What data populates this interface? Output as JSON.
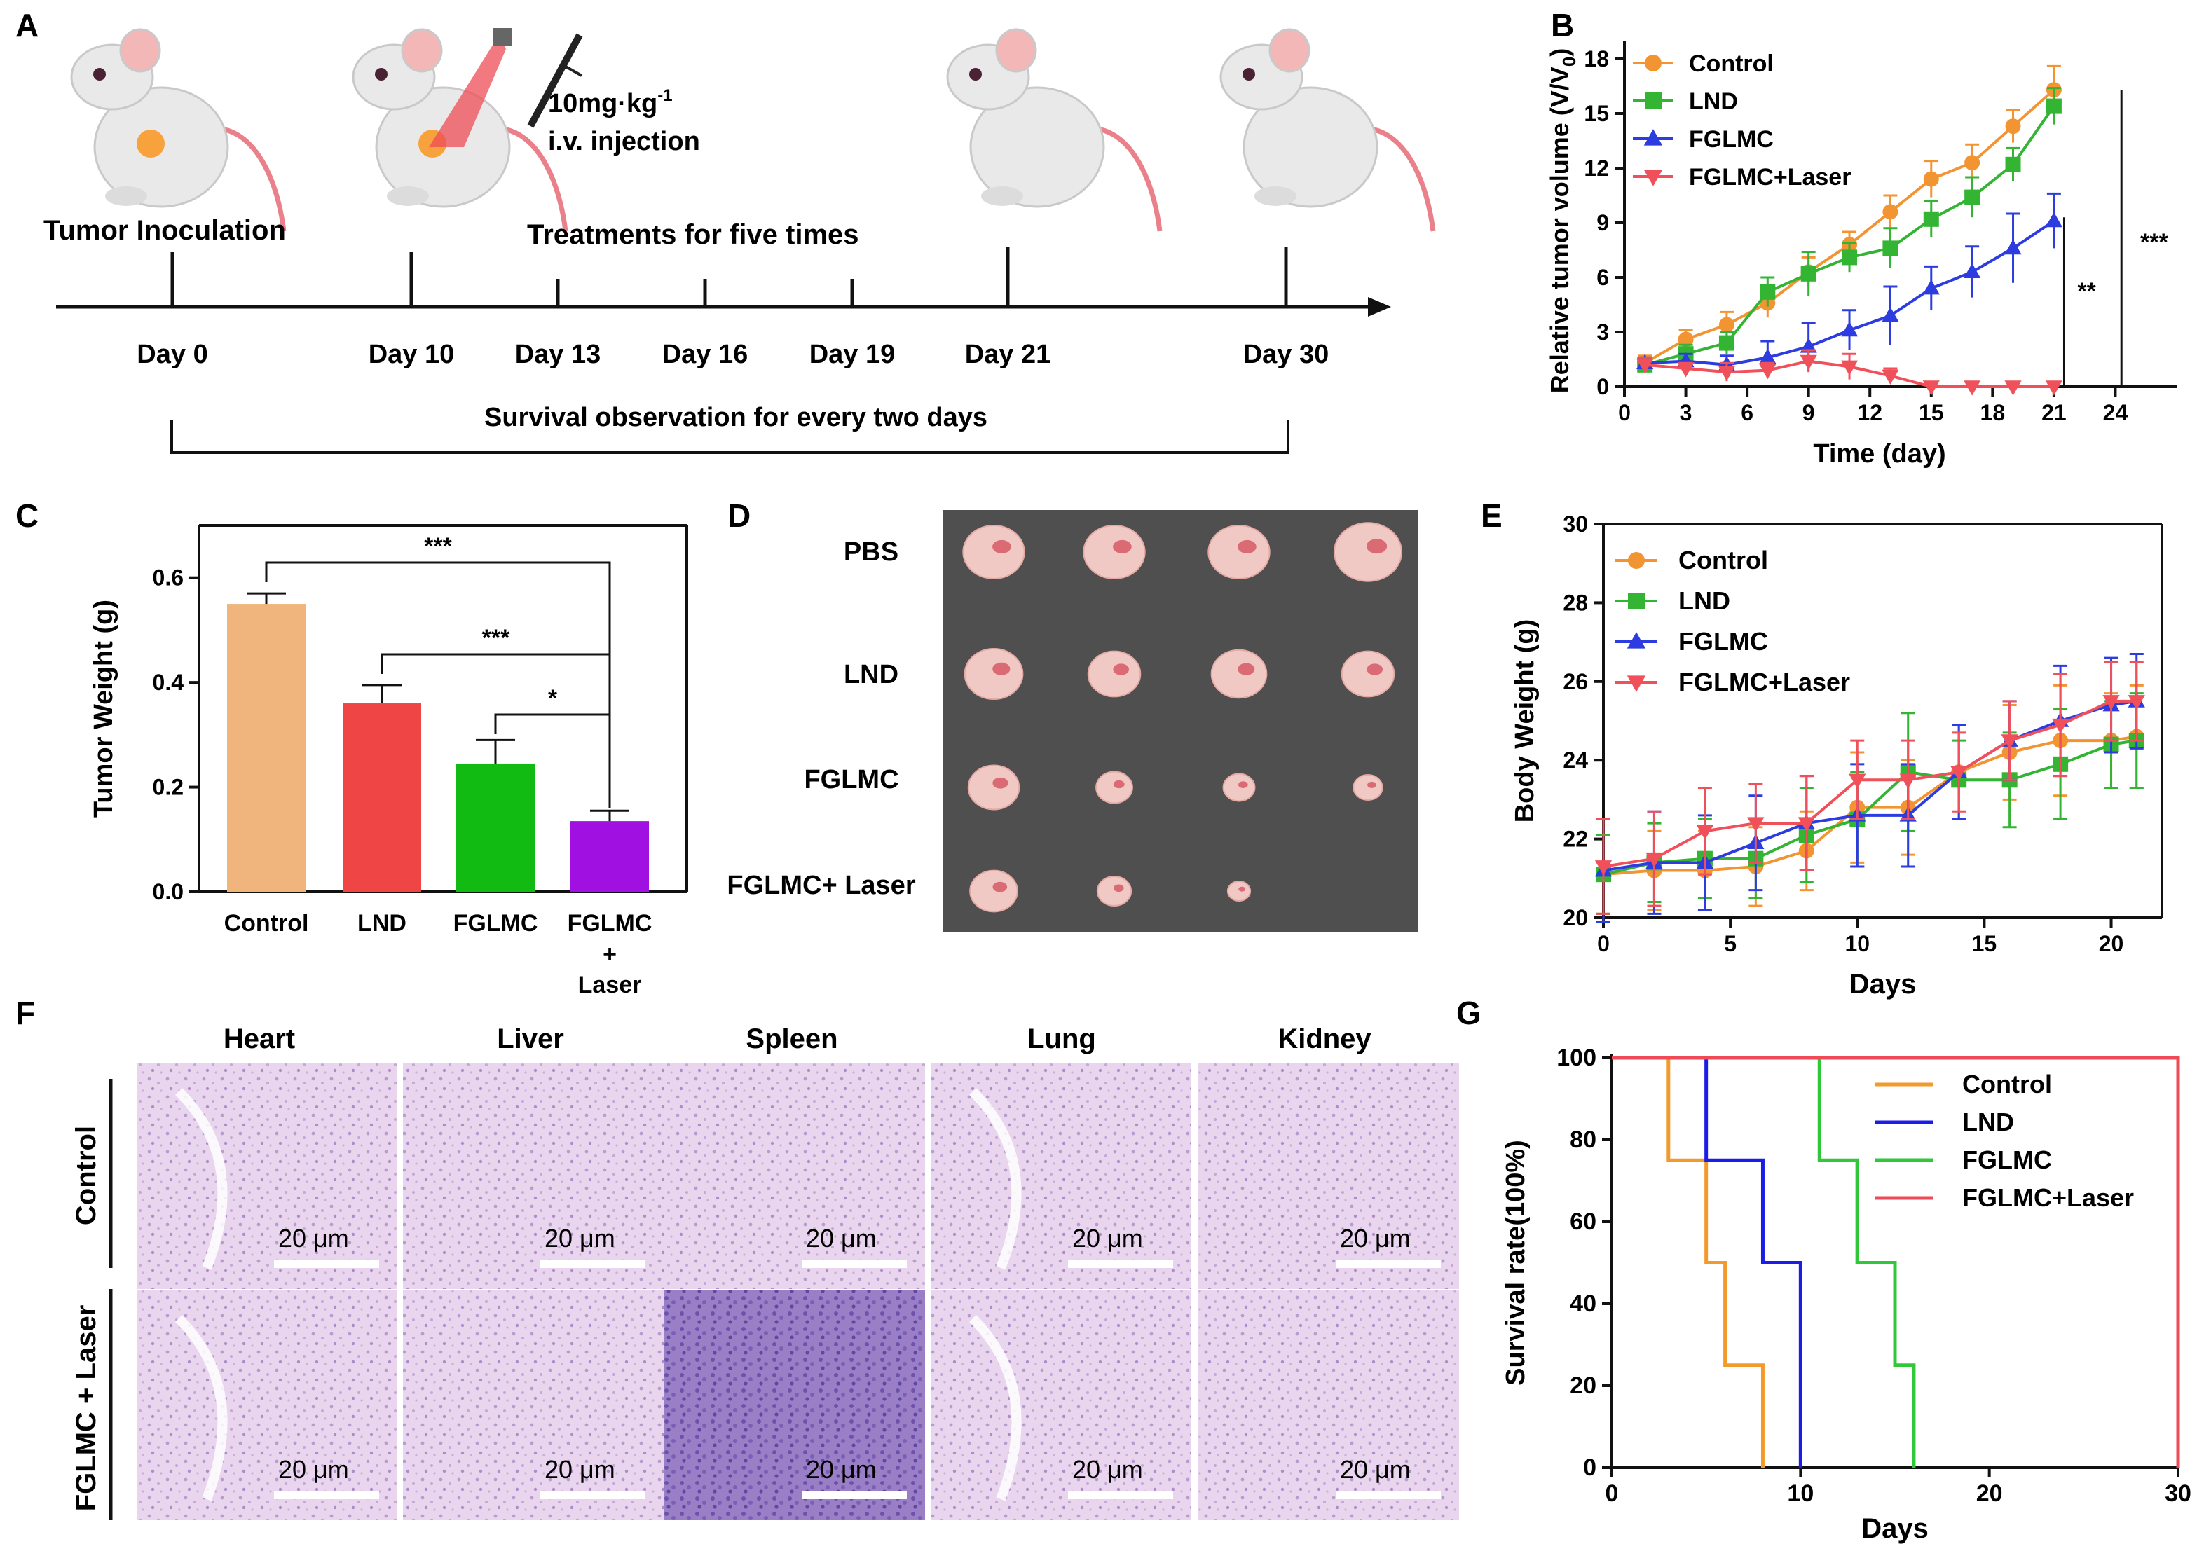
{
  "panel_letters": [
    "A",
    "B",
    "C",
    "D",
    "E",
    "F",
    "G"
  ],
  "colors": {
    "control": "#f39433",
    "lnd": "#33b433",
    "fglmc": "#2c3ce0",
    "fglmc_laser": "#f0505a",
    "bar_control": "#efb57c",
    "bar_lnd": "#f04545",
    "bar_fglmc": "#12bb12",
    "bar_laser": "#a010e0",
    "surv_control": "#f39a2c",
    "surv_lnd": "#1c1ce8",
    "surv_fglmc": "#30c83a",
    "surv_laser": "#ef4a55",
    "axis": "#111111",
    "mouse_body": "#e9e9e9",
    "mouse_ear": "#f3b7b7",
    "tail": "#e9808a",
    "tumor": "#f7a23c",
    "laser": "#ee4c55",
    "he_bg": "#e9d6ee",
    "he_spot": "#b69ccf",
    "tissue_board": "#4f4f4f"
  },
  "panel_a": {
    "dose_line1": "10mg·kg",
    "dose_sup": "-1",
    "dose_line2": "i.v. injection",
    "label_inoculation": "Tumor Inoculation",
    "label_treatments": "Treatments for five times",
    "timeline_days": [
      "Day 0",
      "Day 10",
      "Day 13",
      "Day 16",
      "Day 19",
      "Day 21",
      "Day 30"
    ],
    "survival_label": "Survival observation for every two days",
    "icons": [
      "mouse-icon",
      "mouse-laser-icon",
      "syringe-icon",
      "mouse-icon",
      "mouse-icon"
    ]
  },
  "panel_d": {
    "rows": [
      "PBS",
      "LND",
      "FGLMC",
      "FGLMC+ Laser"
    ],
    "tumor_counts": [
      4,
      4,
      4,
      3
    ]
  },
  "panel_f": {
    "columns": [
      "Heart",
      "Liver",
      "Spleen",
      "Lung",
      "Kidney"
    ],
    "rows": [
      "Control",
      "FGLMC + Laser"
    ],
    "scale_bar": "20 μm"
  },
  "chart_data": [
    {
      "id": "B",
      "type": "line",
      "xlabel": "Time (day)",
      "ylabel_main": "Relative tumor volume (V/V",
      "ylabel_sub": "0",
      "ylabel_end": ")",
      "xlim": [
        0,
        27
      ],
      "ylim": [
        0,
        19
      ],
      "xticks": [
        0,
        3,
        6,
        9,
        12,
        15,
        18,
        21,
        24
      ],
      "yticks": [
        0,
        3,
        6,
        9,
        12,
        15,
        18
      ],
      "legend_position": "top-left",
      "x": [
        1,
        3,
        5,
        7,
        9,
        11,
        13,
        15,
        17,
        19,
        21
      ],
      "series": [
        {
          "name": "Control",
          "marker": "circle",
          "values": [
            1.3,
            2.6,
            3.4,
            4.6,
            6.3,
            7.8,
            9.6,
            11.4,
            12.3,
            14.3,
            16.3
          ],
          "errors": [
            0.4,
            0.5,
            0.7,
            0.8,
            0.8,
            0.7,
            0.9,
            1.0,
            1.0,
            0.9,
            1.3
          ]
        },
        {
          "name": "LND",
          "marker": "square",
          "values": [
            1.2,
            1.8,
            2.4,
            5.2,
            6.2,
            7.1,
            7.6,
            9.2,
            10.4,
            12.2,
            15.4
          ],
          "errors": [
            0.3,
            0.5,
            0.6,
            0.8,
            1.2,
            0.8,
            1.1,
            1.0,
            1.1,
            0.9,
            1.0
          ]
        },
        {
          "name": "FGLMC",
          "marker": "triangle-up",
          "values": [
            1.3,
            1.4,
            1.2,
            1.6,
            2.2,
            3.1,
            3.9,
            5.4,
            6.3,
            7.6,
            9.1
          ],
          "errors": [
            0.3,
            0.4,
            0.5,
            0.9,
            1.3,
            1.1,
            1.6,
            1.2,
            1.4,
            1.9,
            1.5
          ]
        },
        {
          "name": "FGLMC+Laser",
          "marker": "triangle-down",
          "values": [
            1.2,
            1.0,
            0.8,
            0.9,
            1.4,
            1.1,
            0.6,
            0,
            0,
            0,
            0
          ],
          "errors": [
            0.4,
            0.3,
            0.5,
            0.4,
            0.6,
            0.7,
            0.4,
            0,
            0,
            0,
            0
          ]
        }
      ],
      "annotations": [
        "**",
        "***"
      ]
    },
    {
      "id": "C",
      "type": "bar",
      "ylabel": "Tumor Weight (g)",
      "ylim": [
        0,
        0.7
      ],
      "yticks": [
        0.0,
        0.2,
        0.4,
        0.6
      ],
      "categories": [
        "Control",
        "LND",
        "FGLMC",
        "FGLMC + Laser"
      ],
      "category_lines": [
        [
          "Control"
        ],
        [
          "LND"
        ],
        [
          "FGLMC"
        ],
        [
          "FGLMC",
          "+",
          "Laser"
        ]
      ],
      "values": [
        0.55,
        0.36,
        0.245,
        0.135
      ],
      "errors": [
        0.02,
        0.035,
        0.045,
        0.02
      ],
      "annotations": [
        "***",
        "***",
        "*"
      ]
    },
    {
      "id": "E",
      "type": "line",
      "xlabel": "Days",
      "ylabel": "Body Weight (g)",
      "xlim": [
        0,
        22
      ],
      "ylim": [
        20,
        30
      ],
      "xticks": [
        0,
        5,
        10,
        15,
        20
      ],
      "yticks": [
        20,
        22,
        24,
        26,
        28,
        30
      ],
      "legend_position": "top-left",
      "x": [
        0,
        2,
        4,
        6,
        8,
        10,
        12,
        14,
        16,
        18,
        20,
        21
      ],
      "series": [
        {
          "name": "Control",
          "marker": "circle",
          "values": [
            21.1,
            21.2,
            21.2,
            21.3,
            21.7,
            22.8,
            22.8,
            23.7,
            24.2,
            24.5,
            24.5,
            24.6
          ],
          "errors": [
            1.0,
            1.0,
            1.0,
            1.0,
            1.0,
            1.4,
            1.2,
            1.2,
            1.2,
            1.4,
            1.2,
            1.3
          ]
        },
        {
          "name": "LND",
          "marker": "square",
          "values": [
            21.1,
            21.4,
            21.5,
            21.5,
            22.1,
            22.5,
            23.7,
            23.5,
            23.5,
            23.9,
            24.4,
            24.5
          ],
          "errors": [
            1.0,
            1.0,
            1.0,
            1.0,
            1.2,
            1.2,
            1.5,
            1.0,
            1.2,
            1.4,
            1.1,
            1.2
          ]
        },
        {
          "name": "FGLMC",
          "marker": "triangle-up",
          "values": [
            21.2,
            21.4,
            21.4,
            21.9,
            22.4,
            22.6,
            22.6,
            23.7,
            24.5,
            25.0,
            25.4,
            25.5
          ],
          "errors": [
            1.3,
            1.3,
            1.2,
            1.2,
            1.2,
            1.3,
            1.3,
            1.2,
            1.0,
            1.4,
            1.2,
            1.2
          ]
        },
        {
          "name": "FGLMC+Laser",
          "marker": "triangle-down",
          "values": [
            21.3,
            21.5,
            22.2,
            22.4,
            22.4,
            23.5,
            23.5,
            23.7,
            24.5,
            24.9,
            25.5,
            25.5
          ],
          "errors": [
            1.2,
            1.2,
            1.1,
            1.0,
            1.2,
            1.0,
            1.0,
            1.0,
            1.0,
            1.3,
            1.0,
            1.0
          ]
        }
      ]
    },
    {
      "id": "G",
      "type": "line",
      "subtype": "survival-step",
      "xlabel": "Days",
      "ylabel": "Survival rate(100%)",
      "xlim": [
        0,
        30
      ],
      "ylim": [
        0,
        100
      ],
      "xticks": [
        0,
        10,
        20,
        30
      ],
      "yticks": [
        0,
        20,
        40,
        60,
        80,
        100
      ],
      "legend_position": "top-right",
      "series": [
        {
          "name": "Control",
          "steps": [
            [
              0,
              100
            ],
            [
              3,
              75
            ],
            [
              5,
              50
            ],
            [
              6,
              25
            ],
            [
              8,
              0
            ]
          ]
        },
        {
          "name": "LND",
          "steps": [
            [
              0,
              100
            ],
            [
              5,
              75
            ],
            [
              8,
              50
            ],
            [
              10,
              0
            ]
          ]
        },
        {
          "name": "FGLMC",
          "steps": [
            [
              0,
              100
            ],
            [
              11,
              75
            ],
            [
              13,
              50
            ],
            [
              15,
              25
            ],
            [
              16,
              0
            ]
          ]
        },
        {
          "name": "FGLMC+Laser",
          "steps": [
            [
              0,
              100
            ],
            [
              30,
              0
            ]
          ]
        }
      ]
    }
  ]
}
